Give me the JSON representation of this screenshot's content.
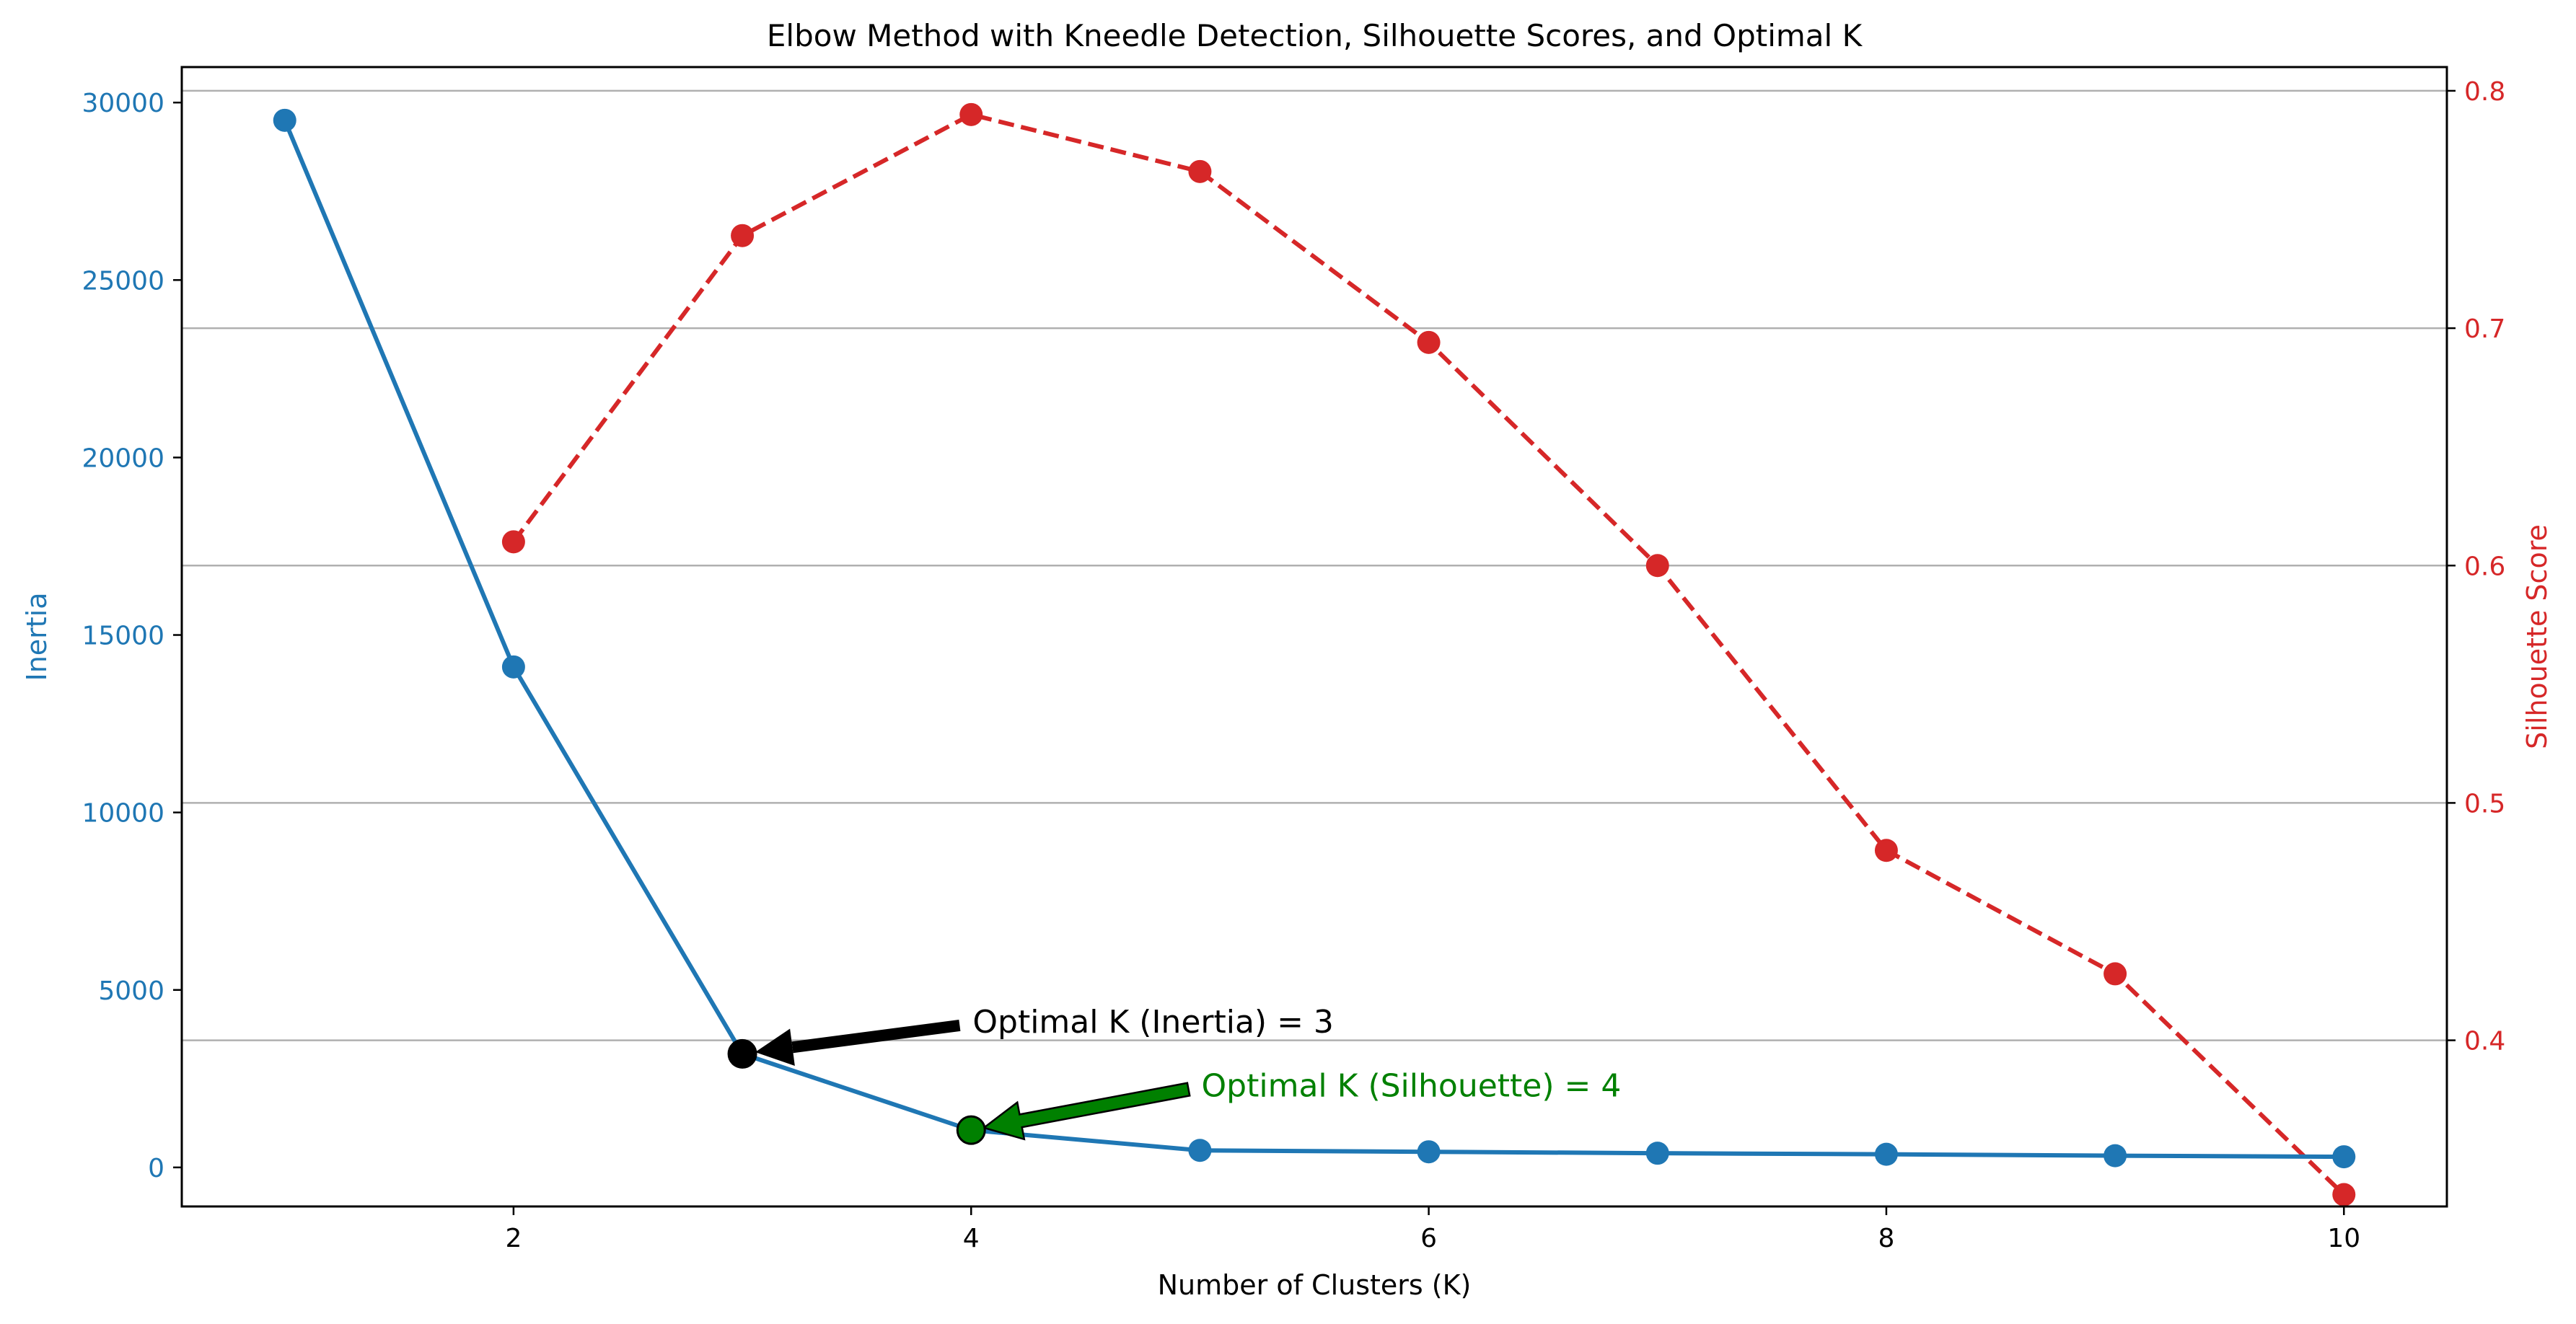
{
  "chart_data": {
    "type": "line",
    "title": "Elbow Method with Kneedle Detection, Silhouette Scores, and Optimal K",
    "xlabel": "Number of Clusters (K)",
    "ylabel_left": "Inertia",
    "ylabel_right": "Silhouette Score",
    "xlim": [
      0.55,
      10.45
    ],
    "ylim_left": [
      -1100,
      31000
    ],
    "ylim_right": [
      0.33,
      0.81
    ],
    "x_ticks": [
      2,
      4,
      6,
      8,
      10
    ],
    "y_ticks_left": [
      0,
      5000,
      10000,
      15000,
      20000,
      25000,
      30000
    ],
    "y_ticks_right": [
      0.4,
      0.5,
      0.6,
      0.7,
      0.8
    ],
    "grid": "horizontal lines at right-axis ticks",
    "series": [
      {
        "axis": "left",
        "color": "#1f77b4",
        "style": "solid",
        "x": [
          1,
          2,
          3,
          4,
          5,
          6,
          7,
          8,
          9,
          10
        ],
        "values": [
          29500,
          14100,
          3200,
          1050,
          480,
          440,
          400,
          370,
          330,
          300
        ]
      },
      {
        "axis": "right",
        "color": "#d62728",
        "style": "dashed",
        "x": [
          2,
          3,
          4,
          5,
          6,
          7,
          8,
          9,
          10
        ],
        "values": [
          0.61,
          0.739,
          0.79,
          0.766,
          0.694,
          0.6,
          0.48,
          0.428,
          0.335
        ]
      }
    ],
    "annotations": [
      {
        "text": "Optimal K (Inertia) = 3",
        "x": 3,
        "y": 3200,
        "axis": "left",
        "text_x": 3.95,
        "text_y": 4000,
        "color": "#000000",
        "arrow_color": "#000000"
      },
      {
        "text": "Optimal K (Silhouette) = 4",
        "x": 4,
        "y": 1050,
        "axis": "left",
        "text_x": 4.95,
        "text_y": 2200,
        "color": "#008000",
        "arrow_color": "#008000"
      }
    ],
    "colors": {
      "left_axis": "#1f77b4",
      "right_axis": "#d62728",
      "grid": "#b0b0b0",
      "optimal_inertia": "#000000",
      "optimal_silhouette": "#008000"
    }
  }
}
